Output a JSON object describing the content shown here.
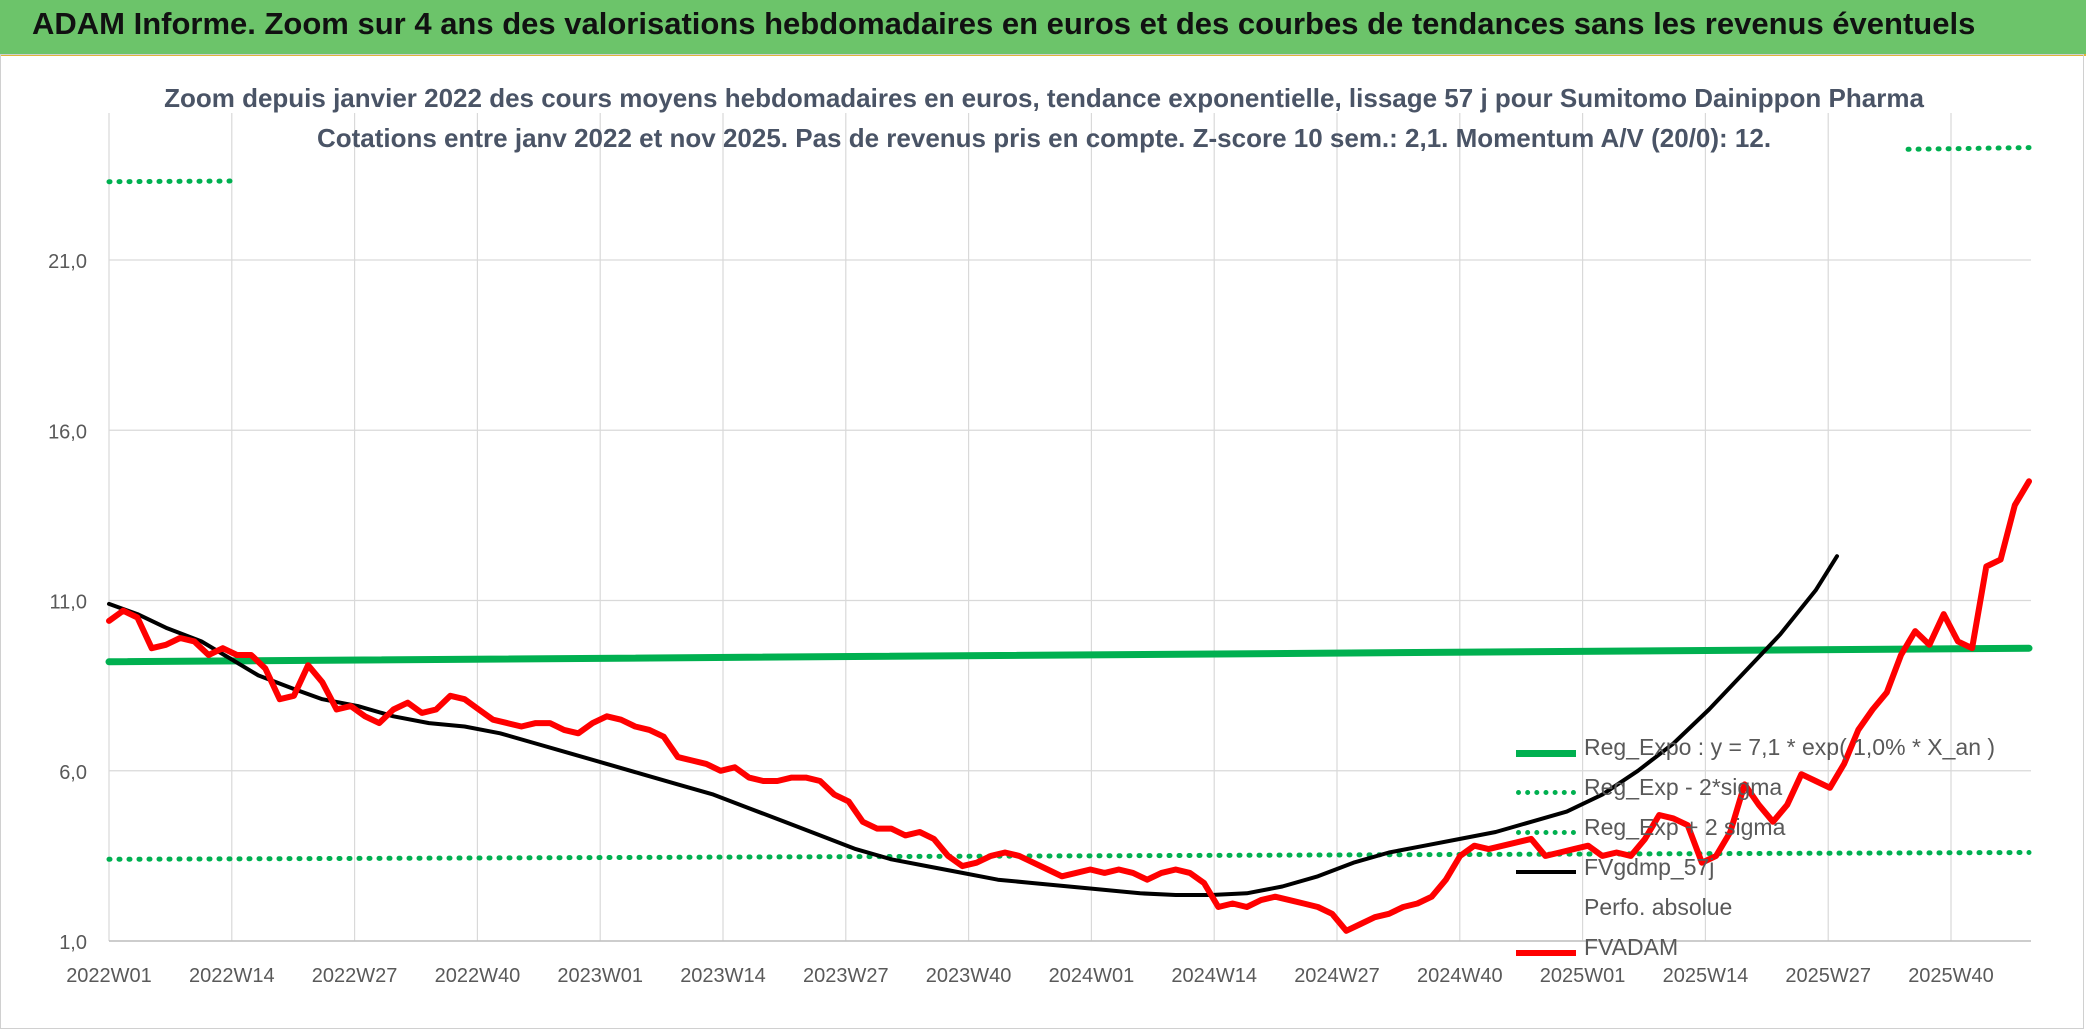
{
  "banner": {
    "title": "ADAM Informe. Zoom sur 4 ans des valorisations hebdomadaires en euros et des courbes de tendances sans les revenus éventuels"
  },
  "chart_data": {
    "type": "line",
    "title": "Zoom depuis janvier 2022 des cours moyens hebdomadaires en euros, tendance exponentielle, lissage 57 j pour Sumitomo Dainippon Pharma",
    "subtitle": "Cotations entre janv 2022 et nov 2025. Pas de revenus pris en compte. Z-score 10 sem.: 2,1. Momentum A/V (20/0): 12.",
    "xlabel": "",
    "ylabel": "",
    "ylim": [
      1.0,
      24.0
    ],
    "y_ticks": [
      "1,0",
      "6,0",
      "11,0",
      "16,0",
      "21,0"
    ],
    "y_tick_values": [
      1,
      6,
      11,
      16,
      21
    ],
    "x_ticks": [
      "2022W01",
      "2022W14",
      "2022W27",
      "2022W40",
      "2023W01",
      "2023W14",
      "2023W27",
      "2023W40",
      "2024W01",
      "2024W14",
      "2024W27",
      "2024W40",
      "2025W01",
      "2025W14",
      "2025W27",
      "2025W40"
    ],
    "x_range_weeks": [
      0,
      205
    ],
    "grid": true,
    "legend_position": "right",
    "colors": {
      "green": "#00b050",
      "black": "#000000",
      "red": "#ff0000",
      "grid": "#d9d9d9",
      "axis_text": "#595959"
    },
    "series": [
      {
        "name": "Reg_Expo : y = 7,1 * exp( 1,0% * X_an )",
        "style": "solid-green",
        "points": [
          [
            0,
            9.2
          ],
          [
            205,
            9.6
          ]
        ]
      },
      {
        "name": "Reg_Exp - 2*sigma",
        "style": "dotted-green",
        "points": [
          [
            0,
            3.4
          ],
          [
            205,
            3.6
          ]
        ]
      },
      {
        "name": "Reg_Exp + 2 sigma",
        "style": "dotted-green",
        "points": [
          [
            0,
            23.3
          ],
          [
            205,
            24.3
          ]
        ]
      },
      {
        "name": "FVgdmp_57j",
        "style": "solid-black",
        "points": [
          [
            0,
            10.9
          ],
          [
            4,
            10.6
          ],
          [
            8,
            10.2
          ],
          [
            13,
            9.8
          ],
          [
            17,
            9.3
          ],
          [
            21,
            8.8
          ],
          [
            26,
            8.4
          ],
          [
            30,
            8.1
          ],
          [
            35,
            7.9
          ],
          [
            40,
            7.6
          ],
          [
            45,
            7.4
          ],
          [
            50,
            7.3
          ],
          [
            55,
            7.1
          ],
          [
            60,
            6.8
          ],
          [
            65,
            6.5
          ],
          [
            70,
            6.2
          ],
          [
            75,
            5.9
          ],
          [
            80,
            5.6
          ],
          [
            85,
            5.3
          ],
          [
            90,
            4.9
          ],
          [
            95,
            4.5
          ],
          [
            100,
            4.1
          ],
          [
            105,
            3.7
          ],
          [
            110,
            3.4
          ],
          [
            115,
            3.2
          ],
          [
            120,
            3.0
          ],
          [
            125,
            2.8
          ],
          [
            130,
            2.7
          ],
          [
            135,
            2.6
          ],
          [
            140,
            2.5
          ],
          [
            145,
            2.4
          ],
          [
            150,
            2.35
          ],
          [
            155,
            2.35
          ],
          [
            160,
            2.4
          ],
          [
            165,
            2.6
          ],
          [
            170,
            2.9
          ],
          [
            175,
            3.3
          ],
          [
            180,
            3.6
          ],
          [
            185,
            3.8
          ],
          [
            190,
            4.0
          ],
          [
            195,
            4.2
          ],
          [
            200,
            4.5
          ],
          [
            205,
            4.8
          ],
          [
            210,
            5.3
          ],
          [
            215,
            6.0
          ],
          [
            220,
            6.8
          ],
          [
            225,
            7.8
          ],
          [
            230,
            8.9
          ],
          [
            235,
            10.0
          ],
          [
            240,
            11.3
          ],
          [
            243,
            12.3
          ]
        ]
      },
      {
        "name": "Perfo. absolue",
        "style": "hidden",
        "points": []
      },
      {
        "name": "FVADAM",
        "style": "solid-red",
        "points": [
          [
            0,
            10.4
          ],
          [
            2,
            10.7
          ],
          [
            4,
            10.5
          ],
          [
            6,
            9.6
          ],
          [
            8,
            9.7
          ],
          [
            10,
            9.9
          ],
          [
            12,
            9.8
          ],
          [
            14,
            9.4
          ],
          [
            16,
            9.6
          ],
          [
            18,
            9.4
          ],
          [
            20,
            9.4
          ],
          [
            22,
            9.0
          ],
          [
            24,
            8.1
          ],
          [
            26,
            8.2
          ],
          [
            28,
            9.1
          ],
          [
            30,
            8.6
          ],
          [
            32,
            7.8
          ],
          [
            34,
            7.9
          ],
          [
            36,
            7.6
          ],
          [
            38,
            7.4
          ],
          [
            40,
            7.8
          ],
          [
            42,
            8.0
          ],
          [
            44,
            7.7
          ],
          [
            46,
            7.8
          ],
          [
            48,
            8.2
          ],
          [
            50,
            8.1
          ],
          [
            52,
            7.8
          ],
          [
            54,
            7.5
          ],
          [
            56,
            7.4
          ],
          [
            58,
            7.3
          ],
          [
            60,
            7.4
          ],
          [
            62,
            7.4
          ],
          [
            64,
            7.2
          ],
          [
            66,
            7.1
          ],
          [
            68,
            7.4
          ],
          [
            70,
            7.6
          ],
          [
            72,
            7.5
          ],
          [
            74,
            7.3
          ],
          [
            76,
            7.2
          ],
          [
            78,
            7.0
          ],
          [
            80,
            6.4
          ],
          [
            82,
            6.3
          ],
          [
            84,
            6.2
          ],
          [
            86,
            6.0
          ],
          [
            88,
            6.1
          ],
          [
            90,
            5.8
          ],
          [
            92,
            5.7
          ],
          [
            94,
            5.7
          ],
          [
            96,
            5.8
          ],
          [
            98,
            5.8
          ],
          [
            100,
            5.7
          ],
          [
            102,
            5.3
          ],
          [
            104,
            5.1
          ],
          [
            106,
            4.5
          ],
          [
            108,
            4.3
          ],
          [
            110,
            4.3
          ],
          [
            112,
            4.1
          ],
          [
            114,
            4.2
          ],
          [
            116,
            4.0
          ],
          [
            118,
            3.5
          ],
          [
            120,
            3.2
          ],
          [
            122,
            3.3
          ],
          [
            124,
            3.5
          ],
          [
            126,
            3.6
          ],
          [
            128,
            3.5
          ],
          [
            130,
            3.3
          ],
          [
            132,
            3.1
          ],
          [
            134,
            2.9
          ],
          [
            136,
            3.0
          ],
          [
            138,
            3.1
          ],
          [
            140,
            3.0
          ],
          [
            142,
            3.1
          ],
          [
            144,
            3.0
          ],
          [
            146,
            2.8
          ],
          [
            148,
            3.0
          ],
          [
            150,
            3.1
          ],
          [
            152,
            3.0
          ],
          [
            154,
            2.7
          ],
          [
            156,
            2.0
          ],
          [
            158,
            2.1
          ],
          [
            160,
            2.0
          ],
          [
            162,
            2.2
          ],
          [
            164,
            2.3
          ],
          [
            166,
            2.2
          ],
          [
            168,
            2.1
          ],
          [
            170,
            2.0
          ],
          [
            172,
            1.8
          ],
          [
            174,
            1.3
          ],
          [
            176,
            1.5
          ],
          [
            178,
            1.7
          ],
          [
            180,
            1.8
          ],
          [
            182,
            2.0
          ],
          [
            184,
            2.1
          ],
          [
            186,
            2.3
          ],
          [
            188,
            2.8
          ],
          [
            190,
            3.5
          ],
          [
            192,
            3.8
          ],
          [
            194,
            3.7
          ],
          [
            196,
            3.8
          ],
          [
            198,
            3.9
          ],
          [
            200,
            4.0
          ],
          [
            202,
            3.5
          ],
          [
            204,
            3.6
          ],
          [
            206,
            3.7
          ],
          [
            208,
            3.8
          ],
          [
            210,
            3.5
          ],
          [
            212,
            3.6
          ],
          [
            214,
            3.5
          ],
          [
            216,
            4.0
          ],
          [
            218,
            4.7
          ],
          [
            220,
            4.6
          ],
          [
            222,
            4.4
          ],
          [
            224,
            3.3
          ],
          [
            226,
            3.5
          ],
          [
            228,
            4.2
          ],
          [
            230,
            5.6
          ],
          [
            232,
            5.0
          ],
          [
            234,
            4.5
          ],
          [
            236,
            5.0
          ],
          [
            238,
            5.9
          ],
          [
            240,
            5.7
          ],
          [
            242,
            5.5
          ],
          [
            244,
            6.2
          ],
          [
            246,
            7.2
          ],
          [
            248,
            7.8
          ],
          [
            250,
            8.3
          ],
          [
            252,
            9.4
          ],
          [
            254,
            10.1
          ],
          [
            256,
            9.7
          ],
          [
            258,
            10.6
          ],
          [
            260,
            9.8
          ],
          [
            262,
            9.6
          ],
          [
            264,
            12.0
          ],
          [
            266,
            12.2
          ],
          [
            268,
            13.8
          ],
          [
            270,
            14.5
          ]
        ]
      }
    ]
  }
}
